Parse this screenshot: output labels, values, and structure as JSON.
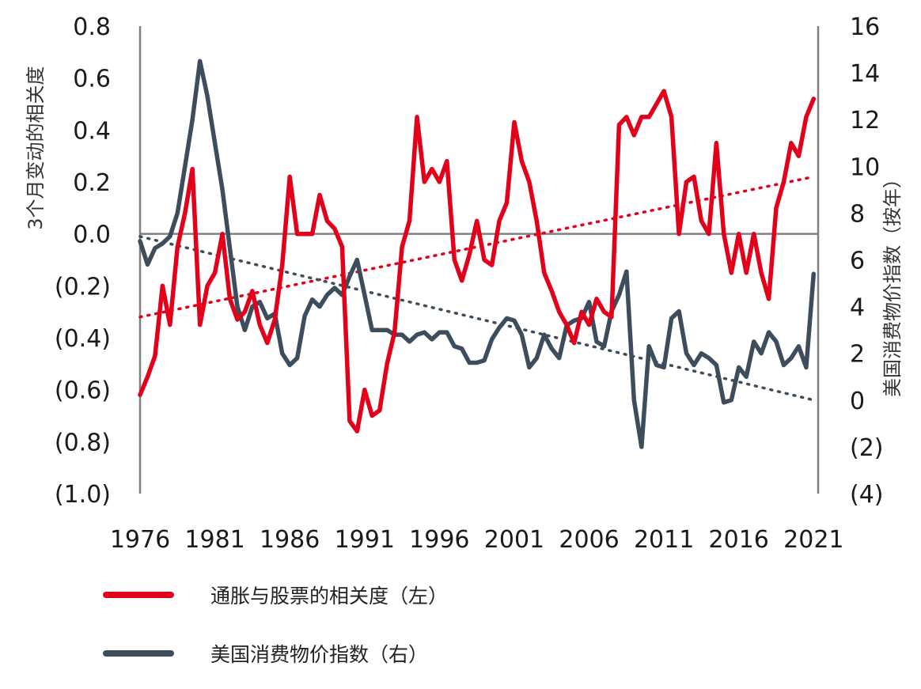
{
  "chart_data": {
    "type": "line",
    "y_left": {
      "label": "3个月变动的相关度",
      "ylim": [
        -1.0,
        0.8
      ],
      "ticks": [
        "0.8",
        "0.6",
        "0.4",
        "0.2",
        "0.0",
        "(0.2)",
        "(0.4)",
        "(0.6)",
        "(0.8)",
        "(1.0)"
      ]
    },
    "y_right": {
      "label": "美国消费物价指数（按年）",
      "ylim": [
        -4,
        16
      ],
      "ticks": [
        "16",
        "14",
        "12",
        "10",
        "8",
        "6",
        "4",
        "2",
        "0",
        "(2)",
        "(4)"
      ]
    },
    "x_ticks": [
      "1976",
      "1981",
      "1986",
      "1991",
      "1996",
      "2001",
      "2006",
      "2011",
      "2016",
      "2021"
    ],
    "xlim": [
      1976,
      2021.3
    ],
    "series": [
      {
        "name": "通胀与股票的相关度（左）",
        "axis": "left",
        "color": "#e3001b",
        "x": [
          1976.0,
          1976.5,
          1977.0,
          1977.5,
          1978.0,
          1978.5,
          1979.0,
          1979.5,
          1980.0,
          1980.5,
          1981.0,
          1981.5,
          1982.0,
          1982.5,
          1983.0,
          1983.5,
          1984.0,
          1984.5,
          1985.0,
          1985.5,
          1986.0,
          1986.5,
          1987.0,
          1987.5,
          1988.0,
          1988.5,
          1989.0,
          1989.5,
          1990.0,
          1990.5,
          1991.0,
          1991.5,
          1992.0,
          1992.5,
          1993.0,
          1993.5,
          1994.0,
          1994.5,
          1995.0,
          1995.5,
          1996.0,
          1996.5,
          1997.0,
          1997.5,
          1998.0,
          1998.5,
          1999.0,
          1999.5,
          2000.0,
          2000.5,
          2001.0,
          2001.5,
          2002.0,
          2002.5,
          2003.0,
          2003.5,
          2004.0,
          2004.5,
          2005.0,
          2005.5,
          2006.0,
          2006.5,
          2007.0,
          2007.5,
          2008.0,
          2008.5,
          2009.0,
          2009.5,
          2010.0,
          2010.5,
          2011.0,
          2011.5,
          2012.0,
          2012.5,
          2013.0,
          2013.5,
          2014.0,
          2014.5,
          2015.0,
          2015.5,
          2016.0,
          2016.5,
          2017.0,
          2017.5,
          2018.0,
          2018.5,
          2019.0,
          2019.5,
          2020.0,
          2020.5,
          2021.0
        ],
        "y": [
          -0.62,
          -0.55,
          -0.47,
          -0.2,
          -0.35,
          -0.05,
          0.08,
          0.25,
          -0.35,
          -0.2,
          -0.15,
          0.0,
          -0.25,
          -0.33,
          -0.3,
          -0.22,
          -0.35,
          -0.42,
          -0.33,
          -0.12,
          0.22,
          0.0,
          0.0,
          0.0,
          0.15,
          0.05,
          0.02,
          -0.05,
          -0.72,
          -0.76,
          -0.6,
          -0.7,
          -0.68,
          -0.5,
          -0.38,
          -0.05,
          0.05,
          0.45,
          0.2,
          0.25,
          0.2,
          0.28,
          -0.1,
          -0.18,
          -0.08,
          0.05,
          -0.1,
          -0.12,
          0.05,
          0.12,
          0.43,
          0.28,
          0.2,
          0.05,
          -0.15,
          -0.22,
          -0.3,
          -0.35,
          -0.42,
          -0.3,
          -0.35,
          -0.25,
          -0.3,
          -0.32,
          0.42,
          0.45,
          0.38,
          0.45,
          0.45,
          0.5,
          0.55,
          0.45,
          0.0,
          0.2,
          0.22,
          0.05,
          0.0,
          0.35,
          0.0,
          -0.15,
          0.0,
          -0.15,
          0.0,
          -0.15,
          -0.25,
          0.1,
          0.2,
          0.35,
          0.3,
          0.45,
          0.52
        ]
      },
      {
        "name": "美国消费物价指数（右）",
        "axis": "right",
        "color": "#3d4d5c",
        "x": [
          1976.0,
          1976.5,
          1977.0,
          1977.5,
          1978.0,
          1978.5,
          1979.0,
          1979.5,
          1980.0,
          1980.5,
          1981.0,
          1981.5,
          1982.0,
          1982.5,
          1983.0,
          1983.5,
          1984.0,
          1984.5,
          1985.0,
          1985.5,
          1986.0,
          1986.5,
          1987.0,
          1987.5,
          1988.0,
          1988.5,
          1989.0,
          1989.5,
          1990.0,
          1990.5,
          1991.0,
          1991.5,
          1992.0,
          1992.5,
          1993.0,
          1993.5,
          1994.0,
          1994.5,
          1995.0,
          1995.5,
          1996.0,
          1996.5,
          1997.0,
          1997.5,
          1998.0,
          1998.5,
          1999.0,
          1999.5,
          2000.0,
          2000.5,
          2001.0,
          2001.5,
          2002.0,
          2002.5,
          2003.0,
          2003.5,
          2004.0,
          2004.5,
          2005.0,
          2005.5,
          2006.0,
          2006.5,
          2007.0,
          2007.5,
          2008.0,
          2008.5,
          2009.0,
          2009.5,
          2010.0,
          2010.5,
          2011.0,
          2011.5,
          2012.0,
          2012.5,
          2013.0,
          2013.5,
          2014.0,
          2014.5,
          2015.0,
          2015.5,
          2016.0,
          2016.5,
          2017.0,
          2017.5,
          2018.0,
          2018.5,
          2019.0,
          2019.5,
          2020.0,
          2020.5,
          2021.0
        ],
        "y": [
          6.8,
          5.8,
          6.5,
          6.7,
          7.0,
          8.0,
          10.0,
          12.0,
          14.5,
          13.0,
          11.0,
          9.0,
          6.5,
          4.0,
          3.0,
          4.0,
          4.2,
          3.5,
          3.7,
          2.0,
          1.5,
          1.8,
          3.6,
          4.3,
          4.0,
          4.5,
          4.8,
          4.5,
          5.3,
          6.0,
          4.5,
          3.0,
          3.0,
          3.0,
          2.8,
          2.8,
          2.5,
          2.8,
          2.9,
          2.6,
          2.9,
          2.9,
          2.3,
          2.2,
          1.6,
          1.6,
          1.7,
          2.6,
          3.1,
          3.5,
          3.4,
          2.8,
          1.4,
          1.8,
          2.8,
          2.2,
          1.8,
          3.2,
          3.4,
          3.5,
          4.2,
          2.5,
          2.3,
          3.8,
          4.5,
          5.5,
          0.0,
          -2.0,
          2.3,
          1.5,
          1.4,
          3.5,
          3.8,
          2.0,
          1.5,
          2.0,
          1.8,
          1.5,
          -0.1,
          0.0,
          1.4,
          1.0,
          2.5,
          2.0,
          2.9,
          2.5,
          1.5,
          1.8,
          2.3,
          1.4,
          5.4
        ]
      }
    ],
    "trendlines": [
      {
        "of": "通胀与股票的相关度（左）",
        "axis": "left",
        "color": "#e3001b",
        "x": [
          1976.0,
          2021.0
        ],
        "y": [
          -0.32,
          0.22
        ]
      },
      {
        "of": "美国消费物价指数（右）",
        "axis": "right",
        "color": "#3d4d5c",
        "x": [
          1976.0,
          2021.0
        ],
        "y": [
          7.0,
          0.0
        ]
      }
    ],
    "zero_line": {
      "axis": "left",
      "y": 0.0
    },
    "legend": {
      "position": "bottom",
      "items": [
        {
          "label": "通胀与股票的相关度（左）",
          "color": "#e3001b"
        },
        {
          "label": "美国消费物价指数（右）",
          "color": "#3d4d5c"
        }
      ]
    },
    "grid": false
  }
}
